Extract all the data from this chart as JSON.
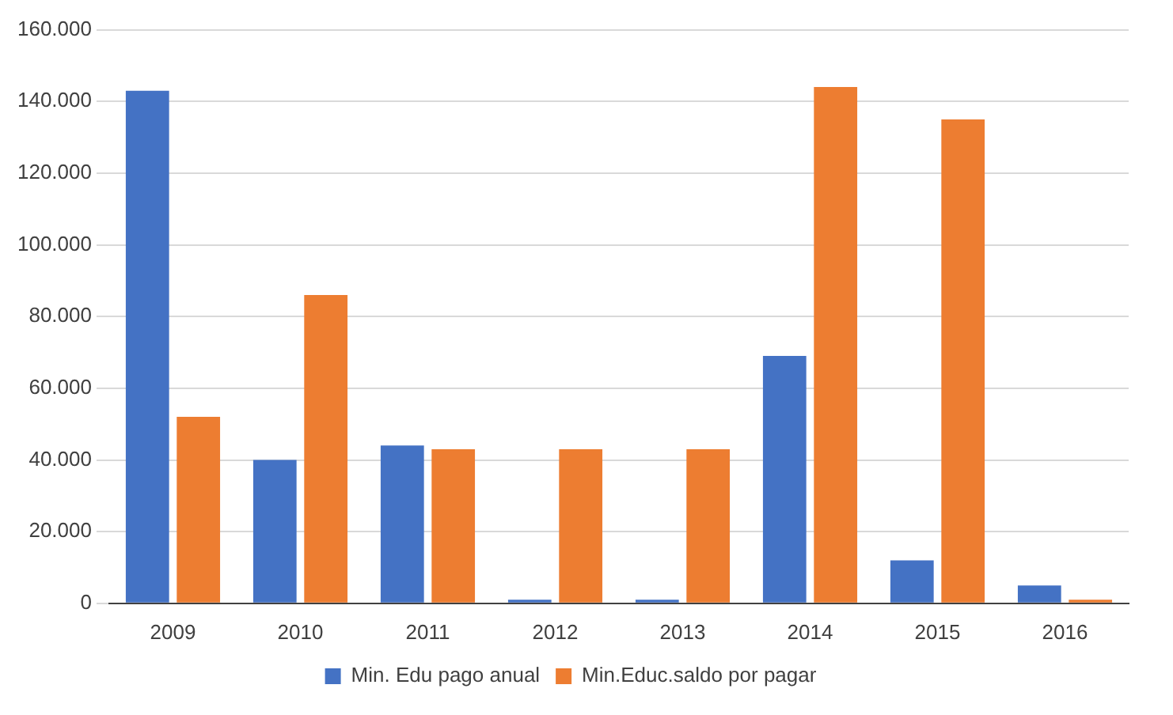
{
  "chart_data": {
    "type": "bar",
    "categories": [
      "2009",
      "2010",
      "2011",
      "2012",
      "2013",
      "2014",
      "2015",
      "2016"
    ],
    "series": [
      {
        "name": "Min. Edu pago anual",
        "color": "#4472c4",
        "values": [
          143000,
          40000,
          44000,
          1000,
          1000,
          69000,
          12000,
          5000
        ]
      },
      {
        "name": "Min.Educ.saldo por pagar",
        "color": "#ed7d31",
        "values": [
          52000,
          86000,
          43000,
          43000,
          43000,
          144000,
          135000,
          1000
        ]
      }
    ],
    "ylim": [
      0,
      160000
    ],
    "yticks": [
      {
        "value": 0,
        "label": "0"
      },
      {
        "value": 20000,
        "label": "20.000"
      },
      {
        "value": 40000,
        "label": "40.000"
      },
      {
        "value": 60000,
        "label": "60.000"
      },
      {
        "value": 80000,
        "label": "80.000"
      },
      {
        "value": 100000,
        "label": "100.000"
      },
      {
        "value": 120000,
        "label": "120.000"
      },
      {
        "value": 140000,
        "label": "140.000"
      },
      {
        "value": 160000,
        "label": "160.000"
      }
    ],
    "grid": "y",
    "legend": "bottom"
  }
}
